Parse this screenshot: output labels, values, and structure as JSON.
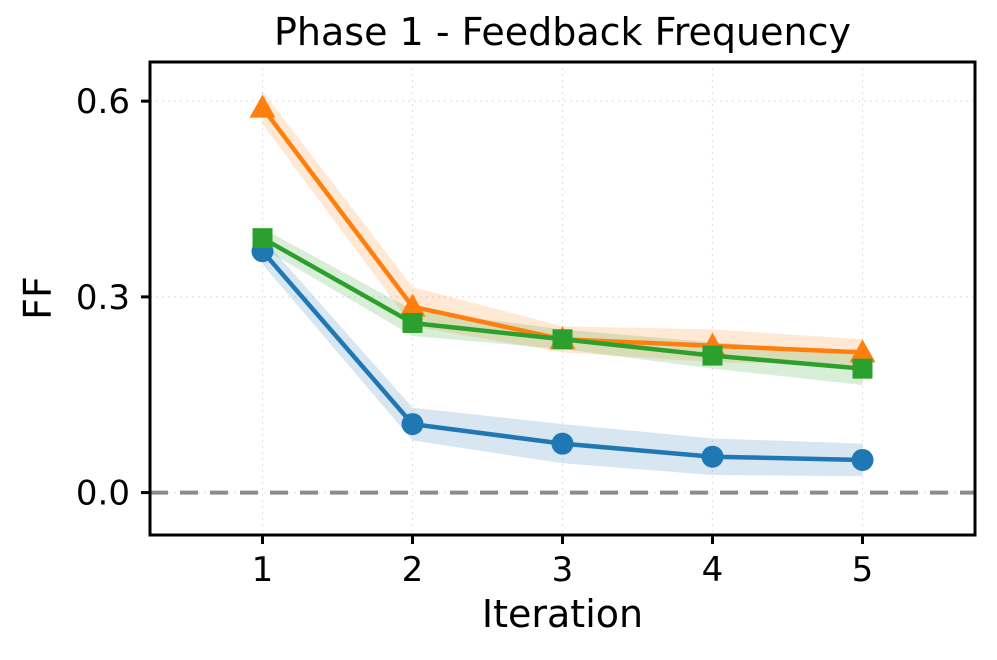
{
  "chart_data": {
    "type": "line",
    "title": "Phase 1 - Feedback Frequency",
    "xlabel": "Iteration",
    "ylabel": "FF",
    "grid": true,
    "legend": "none",
    "xlim": [
      0.25,
      5.75
    ],
    "ylim": [
      -0.065,
      0.66
    ],
    "xticks": [
      1,
      2,
      3,
      4,
      5
    ],
    "xtick_labels": [
      "1",
      "2",
      "3",
      "4",
      "5"
    ],
    "yticks": [
      0.0,
      0.3,
      0.6
    ],
    "ytick_labels": [
      "0.0",
      "0.3",
      "0.6"
    ],
    "reference_line": {
      "y": 0.0,
      "style": "dashed",
      "color": "#8c8c8c"
    },
    "x": [
      1,
      2,
      3,
      4,
      5
    ],
    "series": [
      {
        "name": "blue-circle",
        "marker": "circle",
        "color": "#1f77b4",
        "values": [
          0.37,
          0.105,
          0.075,
          0.055,
          0.05
        ],
        "band": [
          0.02,
          0.025,
          0.03,
          0.028,
          0.025
        ]
      },
      {
        "name": "orange-triangle",
        "marker": "triangle",
        "color": "#ff7f0e",
        "values": [
          0.59,
          0.285,
          0.235,
          0.225,
          0.215
        ],
        "band": [
          0.025,
          0.03,
          0.02,
          0.025,
          0.02
        ]
      },
      {
        "name": "green-square",
        "marker": "square",
        "color": "#2ca02c",
        "values": [
          0.39,
          0.26,
          0.235,
          0.21,
          0.19
        ],
        "band": [
          0.015,
          0.02,
          0.015,
          0.02,
          0.025
        ]
      }
    ]
  }
}
